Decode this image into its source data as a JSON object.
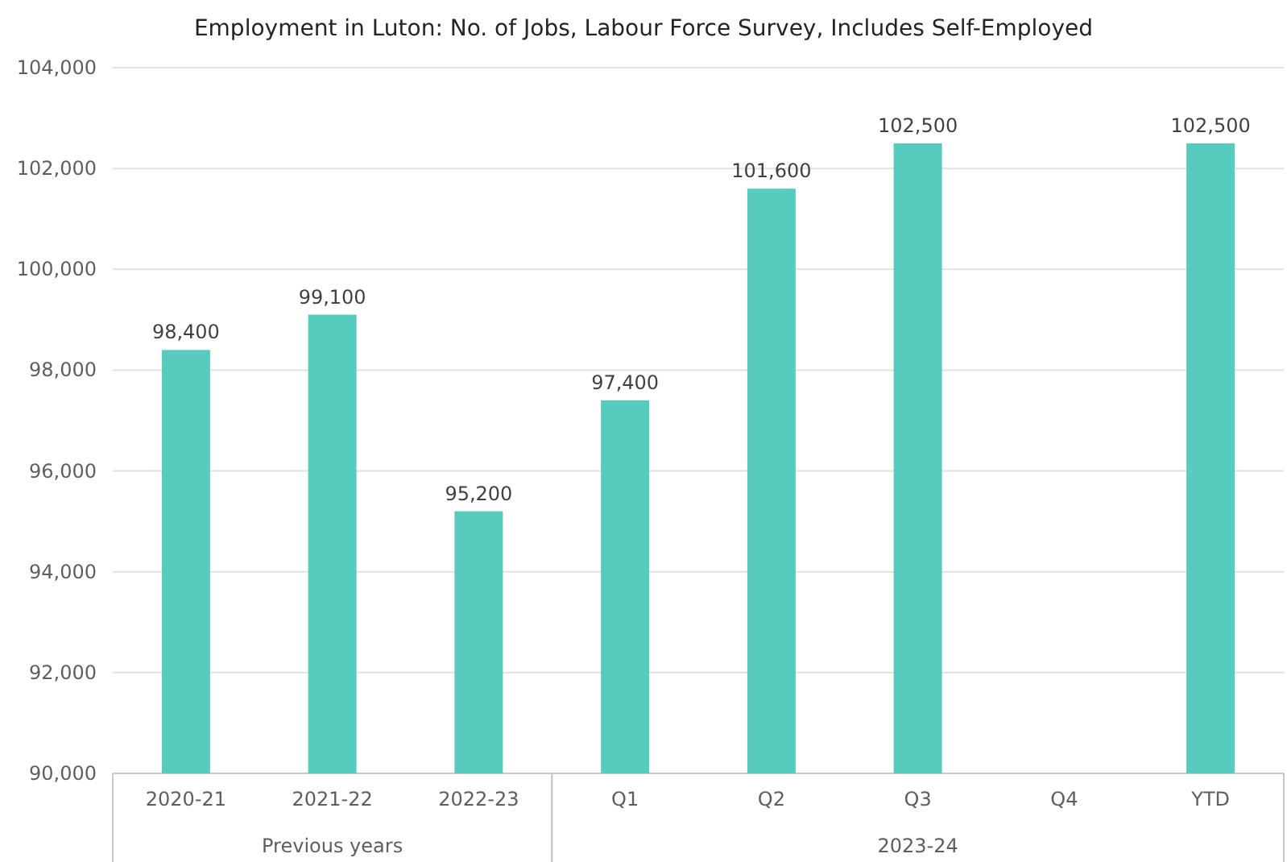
{
  "chart_data": {
    "type": "bar",
    "title": "Employment in Luton: No. of Jobs, Labour Force Survey, Includes Self-Employed",
    "categories": [
      "2020-21",
      "2021-22",
      "2022-23",
      "Q1",
      "Q2",
      "Q3",
      "Q4",
      "YTD"
    ],
    "values": [
      98400,
      99100,
      95200,
      97400,
      101600,
      102500,
      null,
      102500
    ],
    "color": "#56cbbe",
    "ylim": [
      90000,
      104000
    ],
    "yticks": [
      {
        "value": 90000,
        "label": "90,000"
      },
      {
        "value": 92000,
        "label": "92,000"
      },
      {
        "value": 94000,
        "label": "94,000"
      },
      {
        "value": 96000,
        "label": "96,000"
      },
      {
        "value": 98000,
        "label": "98,000"
      },
      {
        "value": 100000,
        "label": "100,000"
      },
      {
        "value": 102000,
        "label": "102,000"
      },
      {
        "value": 104000,
        "label": "104,000"
      }
    ],
    "grid": "y",
    "value_labels": [
      "98,400",
      "99,100",
      "95,200",
      "97,400",
      "101,600",
      "102,500",
      null,
      "102,500"
    ],
    "annotations": [
      "Previous years",
      "2023-24"
    ]
  }
}
